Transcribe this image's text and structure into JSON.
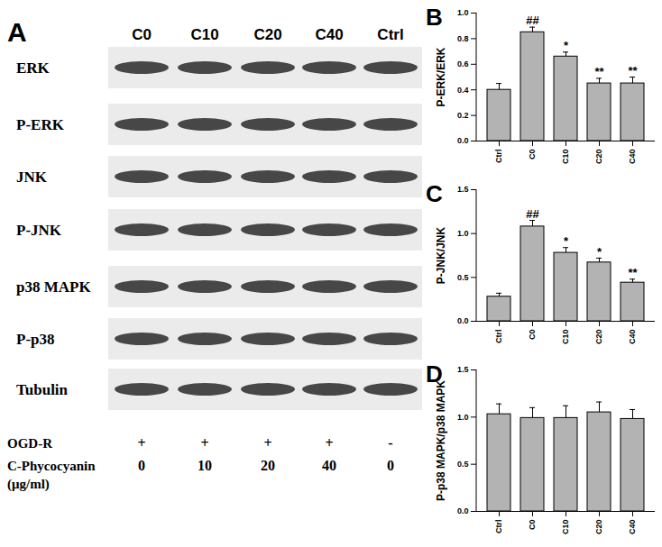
{
  "chart_data": [
    {
      "type": "bar",
      "title": "B",
      "categories": [
        "Ctrl",
        "C0",
        "C10",
        "C20",
        "C40"
      ],
      "values": [
        0.4,
        0.85,
        0.66,
        0.45,
        0.45
      ],
      "errors": [
        0.05,
        0.04,
        0.035,
        0.04,
        0.05
      ],
      "annotations": [
        null,
        "##",
        "*",
        "**",
        "**"
      ],
      "y_label": "P-ERK/ERK",
      "color": "#b3b3b3",
      "ylim": [
        0,
        1.0
      ],
      "yticks": [
        {
          "value": 0,
          "label": "0.0"
        },
        {
          "value": 0.2,
          "label": "0.2"
        },
        {
          "value": 0.4,
          "label": "0.4"
        },
        {
          "value": 0.6,
          "label": "0.6"
        },
        {
          "value": 0.8,
          "label": "0.8"
        },
        {
          "value": 1.0,
          "label": "1.0"
        }
      ],
      "grid": false
    },
    {
      "type": "bar",
      "title": "C",
      "categories": [
        "Ctrl",
        "C0",
        "C10",
        "C20",
        "C40"
      ],
      "values": [
        0.28,
        1.08,
        0.78,
        0.67,
        0.44
      ],
      "errors": [
        0.04,
        0.07,
        0.06,
        0.05,
        0.04
      ],
      "annotations": [
        null,
        "##",
        "*",
        "*",
        "**"
      ],
      "y_label": "P-JNK/JNK",
      "color": "#b3b3b3",
      "ylim": [
        0,
        1.5
      ],
      "yticks": [
        {
          "value": 0,
          "label": "0.0"
        },
        {
          "value": 0.5,
          "label": "0.5"
        },
        {
          "value": 1.0,
          "label": "1.0"
        },
        {
          "value": 1.5,
          "label": "1.5"
        }
      ],
      "grid": false
    },
    {
      "type": "bar",
      "title": "D",
      "categories": [
        "Ctrl",
        "C0",
        "C10",
        "C20",
        "C40"
      ],
      "values": [
        1.03,
        0.99,
        0.99,
        1.05,
        0.98
      ],
      "errors": [
        0.11,
        0.11,
        0.13,
        0.11,
        0.1
      ],
      "y_label": "P-p38 MAPK/p38 MAPK",
      "color": "#b3b3b3",
      "ylim": [
        0,
        1.5
      ],
      "yticks": [
        {
          "value": 0,
          "label": "0.0"
        },
        {
          "value": 0.5,
          "label": "0.5"
        },
        {
          "value": 1.0,
          "label": "1.0"
        },
        {
          "value": 1.5,
          "label": "1.5"
        }
      ],
      "grid": false
    }
  ],
  "blot": {
    "title": "A",
    "columns": [
      "C0",
      "C10",
      "C20",
      "C40",
      "Ctrl"
    ],
    "rows": [
      "ERK",
      "P-ERK",
      "JNK",
      "P-JNK",
      "p38 MAPK",
      "P-p38",
      "Tubulin"
    ],
    "treatments": [
      {
        "label": "OGD-R",
        "values": [
          "+",
          "+",
          "+",
          "+",
          "-"
        ]
      },
      {
        "label": "C-Phycocyanin",
        "unit": "(μg/ml)",
        "values": [
          "0",
          "10",
          "20",
          "40",
          "0"
        ]
      }
    ]
  }
}
